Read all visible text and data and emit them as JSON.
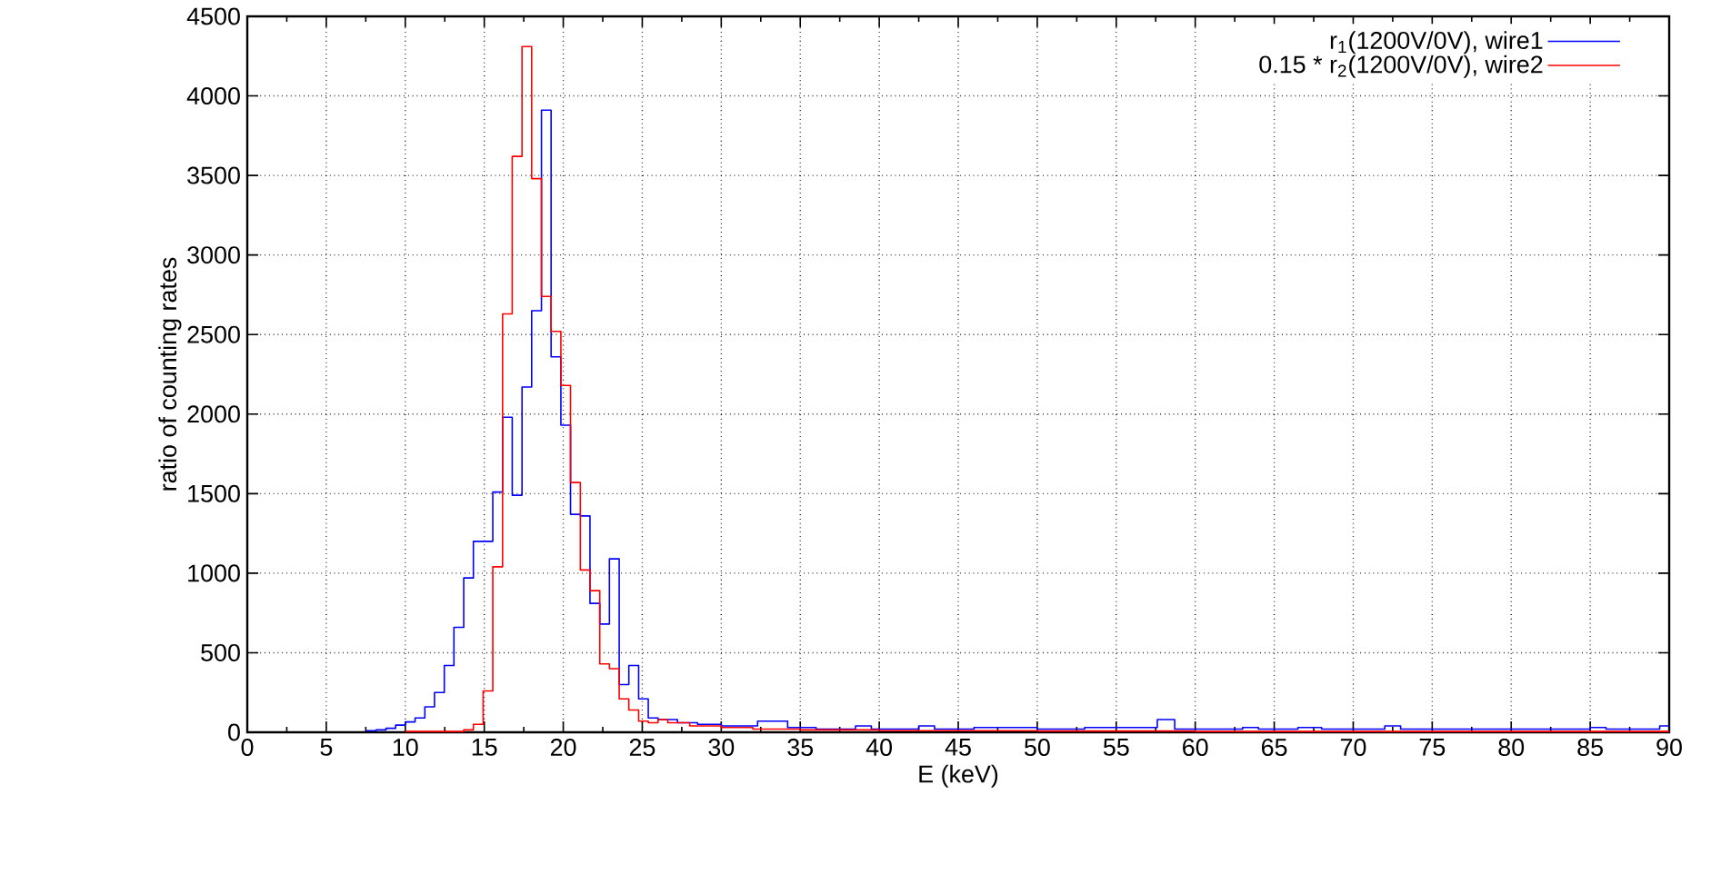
{
  "chart_data": {
    "type": "step",
    "xlabel": "E (keV)",
    "ylabel": "ratio of counting rates",
    "xlim": [
      0,
      90
    ],
    "ylim": [
      0,
      4500
    ],
    "xticks": [
      0,
      5,
      10,
      15,
      20,
      25,
      30,
      35,
      40,
      45,
      50,
      55,
      60,
      65,
      70,
      75,
      80,
      85,
      90
    ],
    "yticks": [
      0,
      500,
      1000,
      1500,
      2000,
      2500,
      3000,
      3500,
      4000,
      4500
    ],
    "grid": true,
    "legend": "top right",
    "series": [
      {
        "name": "r$_{1}$(1200V/0V), wire1",
        "color": "#0000ff",
        "x": [
          7.5,
          8.16,
          8.78,
          9.39,
          10.01,
          10.62,
          11.24,
          11.85,
          12.47,
          13.08,
          13.7,
          14.31,
          14.93,
          15.54,
          16.16,
          16.77,
          17.39,
          18.0,
          18.62,
          19.23,
          19.85,
          20.46,
          21.08,
          21.69,
          22.31,
          22.92,
          23.54,
          24.15,
          24.77,
          25.38,
          26.0,
          26.61,
          27.23,
          28.5,
          30.0,
          32.3,
          34.2,
          36,
          38.5,
          39.5,
          42.5,
          43.5,
          46,
          50,
          53,
          57.6,
          58.7,
          63,
          64,
          66.5,
          68,
          72,
          73,
          77,
          85,
          86,
          89.4,
          90
        ],
        "values": [
          10,
          15,
          25,
          45,
          65,
          90,
          160,
          250,
          420,
          660,
          970,
          1200,
          1200,
          1510,
          1980,
          1490,
          2170,
          2650,
          3910,
          2360,
          1930,
          1370,
          1360,
          810,
          680,
          1090,
          300,
          420,
          210,
          90,
          80,
          80,
          60,
          50,
          40,
          70,
          30,
          20,
          40,
          20,
          40,
          20,
          30,
          20,
          30,
          80,
          20,
          30,
          20,
          30,
          20,
          40,
          20,
          20,
          30,
          20,
          40,
          40
        ]
      },
      {
        "name": "0.15 * r$_{2}$(1200V/0V), wire2",
        "color": "#ff0000",
        "x": [
          10.01,
          13.7,
          14.31,
          14.93,
          15.54,
          16.16,
          16.77,
          17.39,
          18.0,
          18.62,
          19.23,
          19.85,
          20.46,
          21.08,
          21.69,
          22.31,
          22.92,
          23.54,
          24.15,
          24.77,
          25.38,
          26.0,
          26.61,
          28,
          30,
          32,
          35,
          40,
          50,
          60,
          70,
          90
        ],
        "values": [
          5,
          15,
          50,
          260,
          1040,
          2630,
          3620,
          4310,
          3480,
          2740,
          2520,
          2180,
          1570,
          1020,
          890,
          430,
          400,
          210,
          140,
          70,
          60,
          80,
          60,
          40,
          30,
          20,
          15,
          10,
          8,
          5,
          5,
          5
        ]
      }
    ]
  }
}
